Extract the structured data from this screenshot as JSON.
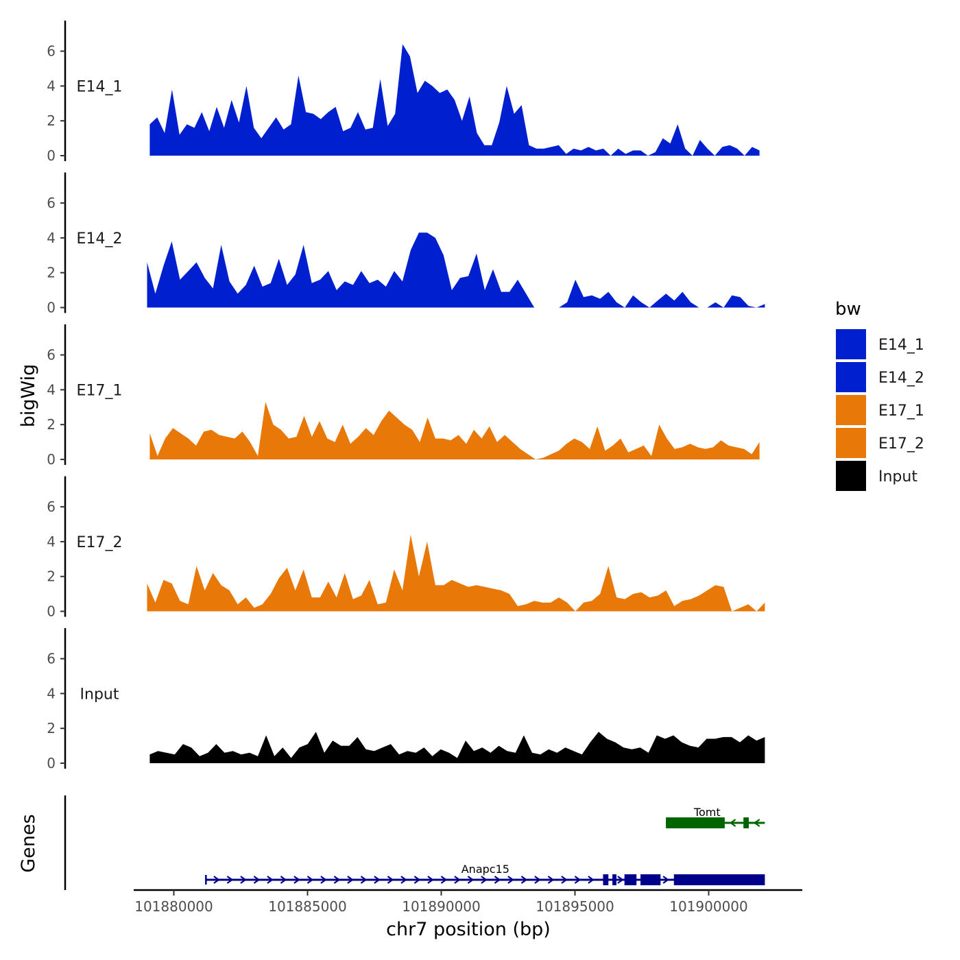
{
  "chart_data": {
    "type": "area",
    "xlabel": "chr7 position (bp)",
    "ylabel": "bigWig",
    "genes_label": "Genes",
    "xlim": [
      101878500,
      101903500
    ],
    "x_ticks": [
      101880000,
      101885000,
      101890000,
      101895000,
      101900000
    ],
    "x_tick_labels": [
      "101880000",
      "101885000",
      "101890000",
      "101895000",
      "101900000"
    ],
    "ylim": [
      0,
      7.8
    ],
    "y_ticks": [
      0,
      2,
      4,
      6
    ],
    "y_tick_labels": [
      "0",
      "2",
      "4",
      "6"
    ],
    "legend": {
      "title": "bw",
      "entries": [
        {
          "label": "E14_1",
          "color": "#0020d0"
        },
        {
          "label": "E14_2",
          "color": "#0020d0"
        },
        {
          "label": "E17_1",
          "color": "#e87808"
        },
        {
          "label": "E17_2",
          "color": "#e87808"
        },
        {
          "label": "Input",
          "color": "#000000"
        }
      ]
    },
    "tracks": [
      {
        "name": "E14_1",
        "color": "#0020d0",
        "x_start": 101879100,
        "x_end": 101901900,
        "values": [
          1.8,
          2.2,
          1.3,
          3.8,
          1.2,
          1.8,
          1.6,
          2.5,
          1.4,
          2.8,
          1.6,
          3.2,
          1.9,
          4.0,
          1.6,
          1.0,
          1.6,
          2.2,
          1.5,
          1.8,
          4.6,
          2.5,
          2.4,
          2.1,
          2.5,
          2.8,
          1.4,
          1.6,
          2.5,
          1.5,
          1.6,
          4.4,
          1.7,
          2.4,
          6.4,
          5.7,
          3.6,
          4.3,
          4.0,
          3.6,
          3.8,
          3.2,
          2.0,
          3.4,
          1.3,
          0.6,
          0.6,
          1.9,
          4.0,
          2.4,
          2.9,
          0.6,
          0.4,
          0.4,
          0.5,
          0.6,
          0.1,
          0.4,
          0.3,
          0.5,
          0.3,
          0.4,
          0.0,
          0.4,
          0.1,
          0.3,
          0.3,
          0.0,
          0.2,
          1.0,
          0.7,
          1.8,
          0.4,
          0.0,
          0.9,
          0.4,
          0.0,
          0.5,
          0.6,
          0.4,
          0.0,
          0.5,
          0.3
        ],
        "color_name": "blue"
      },
      {
        "name": "E14_2",
        "color": "#0020d0",
        "x_start": 101879000,
        "x_end": 101902100,
        "values": [
          2.6,
          0.8,
          2.4,
          3.8,
          1.6,
          2.1,
          2.6,
          1.7,
          1.1,
          3.6,
          1.5,
          0.8,
          1.3,
          2.4,
          1.2,
          1.4,
          2.8,
          1.3,
          1.9,
          3.6,
          1.4,
          1.6,
          2.1,
          1.0,
          1.5,
          1.3,
          2.1,
          1.4,
          1.6,
          1.2,
          2.1,
          1.5,
          3.3,
          4.3,
          4.3,
          4.0,
          3.0,
          1.0,
          1.7,
          1.8,
          3.1,
          1.0,
          2.2,
          0.9,
          0.9,
          1.6,
          0.8,
          0.0,
          0.0,
          0.0,
          0.0,
          0.3,
          1.6,
          0.6,
          0.7,
          0.5,
          0.9,
          0.3,
          0.0,
          0.7,
          0.3,
          0.0,
          0.4,
          0.8,
          0.4,
          0.9,
          0.3,
          0.0,
          0.0,
          0.3,
          0.0,
          0.7,
          0.6,
          0.1,
          0.0,
          0.2
        ],
        "color_name": "blue"
      },
      {
        "name": "E17_1",
        "color": "#e87808",
        "x_start": 101879100,
        "x_end": 101901900,
        "values": [
          1.5,
          0.2,
          1.2,
          1.8,
          1.5,
          1.2,
          0.8,
          1.6,
          1.7,
          1.4,
          1.3,
          1.2,
          1.6,
          1.0,
          0.2,
          3.3,
          2.0,
          1.7,
          1.2,
          1.3,
          2.5,
          1.3,
          2.2,
          1.2,
          1.0,
          2.0,
          0.9,
          1.3,
          1.8,
          1.4,
          2.2,
          2.8,
          2.4,
          2.0,
          1.7,
          1.0,
          2.4,
          1.2,
          1.2,
          1.1,
          1.4,
          0.9,
          1.7,
          1.2,
          1.9,
          1.0,
          1.4,
          1.0,
          0.6,
          0.3,
          0.0,
          0.1,
          0.3,
          0.5,
          0.9,
          1.2,
          1.0,
          0.6,
          1.9,
          0.5,
          0.8,
          1.2,
          0.4,
          0.6,
          0.8,
          0.2,
          2.0,
          1.2,
          0.6,
          0.7,
          0.9,
          0.7,
          0.6,
          0.7,
          1.1,
          0.8,
          0.7,
          0.6,
          0.3,
          1.0
        ],
        "color_name": "orange"
      },
      {
        "name": "E17_2",
        "color": "#e87808",
        "x_start": 101879000,
        "x_end": 101902100,
        "values": [
          1.6,
          0.5,
          1.8,
          1.6,
          0.6,
          0.4,
          2.6,
          1.2,
          2.2,
          1.5,
          1.2,
          0.4,
          0.8,
          0.2,
          0.4,
          1.0,
          1.9,
          2.5,
          1.2,
          2.4,
          0.8,
          0.8,
          1.7,
          0.8,
          2.2,
          0.7,
          0.9,
          1.8,
          0.4,
          0.5,
          2.4,
          1.2,
          4.4,
          2.0,
          4.0,
          1.5,
          1.5,
          1.8,
          1.6,
          1.4,
          1.5,
          1.4,
          1.3,
          1.2,
          1.0,
          0.3,
          0.4,
          0.6,
          0.5,
          0.5,
          0.8,
          0.5,
          0.0,
          0.5,
          0.6,
          1.0,
          2.6,
          0.8,
          0.7,
          1.0,
          1.1,
          0.8,
          0.9,
          1.2,
          0.3,
          0.6,
          0.7,
          0.9,
          1.2,
          1.5,
          1.4,
          0.0,
          0.2,
          0.4,
          0.0,
          0.5
        ],
        "color_name": "orange"
      },
      {
        "name": "Input",
        "color": "#000000",
        "x_start": 101879100,
        "x_end": 101902100,
        "values": [
          0.5,
          0.7,
          0.6,
          0.5,
          1.1,
          0.9,
          0.4,
          0.6,
          1.1,
          0.6,
          0.7,
          0.5,
          0.6,
          0.4,
          1.6,
          0.4,
          0.9,
          0.3,
          0.9,
          1.1,
          1.8,
          0.6,
          1.3,
          1.0,
          1.0,
          1.5,
          0.8,
          0.7,
          0.9,
          1.1,
          0.5,
          0.7,
          0.6,
          0.9,
          0.4,
          0.8,
          0.6,
          0.3,
          1.3,
          0.7,
          0.9,
          0.6,
          1.0,
          0.7,
          0.6,
          1.6,
          0.6,
          0.5,
          0.8,
          0.6,
          0.9,
          0.7,
          0.5,
          1.2,
          1.8,
          1.4,
          1.2,
          0.9,
          0.8,
          0.9,
          0.6,
          1.6,
          1.4,
          1.6,
          1.2,
          1.0,
          0.9,
          1.4,
          1.4,
          1.5,
          1.5,
          1.2,
          1.6,
          1.3,
          1.5
        ],
        "color_name": "black"
      }
    ],
    "genes": [
      {
        "name": "Tomt",
        "color": "#006400",
        "strand": "-",
        "start": 101898400,
        "end": 101902100,
        "exons": [
          [
            101898400,
            101900600
          ],
          [
            101901300,
            101901500
          ]
        ],
        "chevrons": [
          101900900,
          101901800
        ]
      },
      {
        "name": "Anapc15",
        "color": "#00008b",
        "strand": "+",
        "start": 101881200,
        "end": 101902100,
        "exons": [
          [
            101896050,
            101896250
          ],
          [
            101896400,
            101896550
          ],
          [
            101896850,
            101897300
          ],
          [
            101897450,
            101898200
          ],
          [
            101898700,
            101902100
          ]
        ],
        "chevrons": [
          101881600,
          101882100,
          101882600,
          101883100,
          101883600,
          101884100,
          101884600,
          101885100,
          101885600,
          101886100,
          101886600,
          101887100,
          101887600,
          101888100,
          101888600,
          101889100,
          101889600,
          101890100,
          101890600,
          101891100,
          101891600,
          101892100,
          101892600,
          101893100,
          101893600,
          101894100,
          101894600,
          101895100,
          101895600,
          101896700,
          101898400
        ]
      }
    ]
  }
}
